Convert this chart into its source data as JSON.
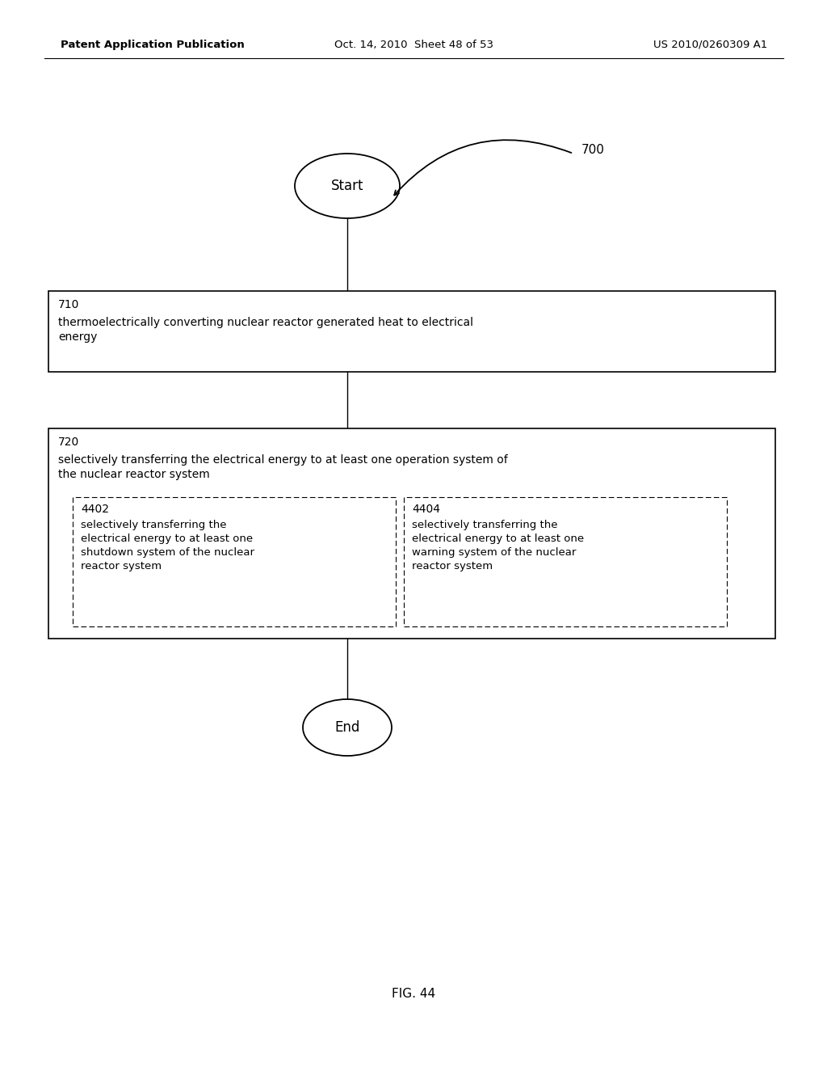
{
  "header_left": "Patent Application Publication",
  "header_mid": "Oct. 14, 2010  Sheet 48 of 53",
  "header_right": "US 2010/0260309 A1",
  "fig_label": "FIG. 44",
  "flow_label": "700",
  "start_text": "Start",
  "end_text": "End",
  "box710_label": "710",
  "box710_text": "thermoelectrically converting nuclear reactor generated heat to electrical\nenergy",
  "box720_label": "720",
  "box720_text": "selectively transferring the electrical energy to at least one operation system of\nthe nuclear reactor system",
  "box4402_label": "4402",
  "box4402_text": "selectively transferring the\nelectrical energy to at least one\nshutdown system of the nuclear\nreactor system",
  "box4404_label": "4404",
  "box4404_text": "selectively transferring the\nelectrical energy to at least one\nwarning system of the nuclear\nreactor system",
  "bg_color": "#ffffff",
  "text_color": "#000000",
  "line_color": "#000000"
}
